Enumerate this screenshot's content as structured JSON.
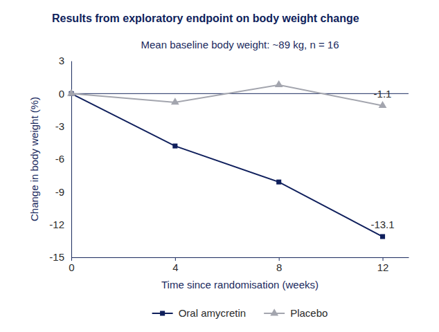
{
  "chart_data": {
    "type": "line",
    "title": "Results from exploratory endpoint on body weight change",
    "subtitle": "Mean baseline body weight: ~89 kg, n = 16",
    "x_label": "Time since randomisation (weeks)",
    "y_label": "Change in body weight (%)",
    "x": [
      0,
      4,
      8,
      12
    ],
    "series": [
      {
        "name": "Oral amycretin",
        "color": "#0f1f5c",
        "marker": "square",
        "values": [
          0,
          -4.8,
          -8.1,
          -13.1
        ]
      },
      {
        "name": "Placebo",
        "color": "#a3a5ae",
        "marker": "triangle",
        "values": [
          0,
          -0.8,
          0.8,
          -1.1
        ]
      }
    ],
    "annotations": [
      {
        "text": "-1.1",
        "x": 12,
        "y": -1.1
      },
      {
        "text": "-13.1",
        "x": 12,
        "y": -13.1
      }
    ],
    "reference_line": 0,
    "xlim": [
      0,
      13
    ],
    "xticks": [
      0,
      4,
      8,
      12
    ],
    "ylim": [
      -15,
      3
    ],
    "yticks": [
      -15,
      -12,
      -9,
      -6,
      -3,
      0,
      3
    ],
    "grid": false,
    "legend": "bottom"
  }
}
